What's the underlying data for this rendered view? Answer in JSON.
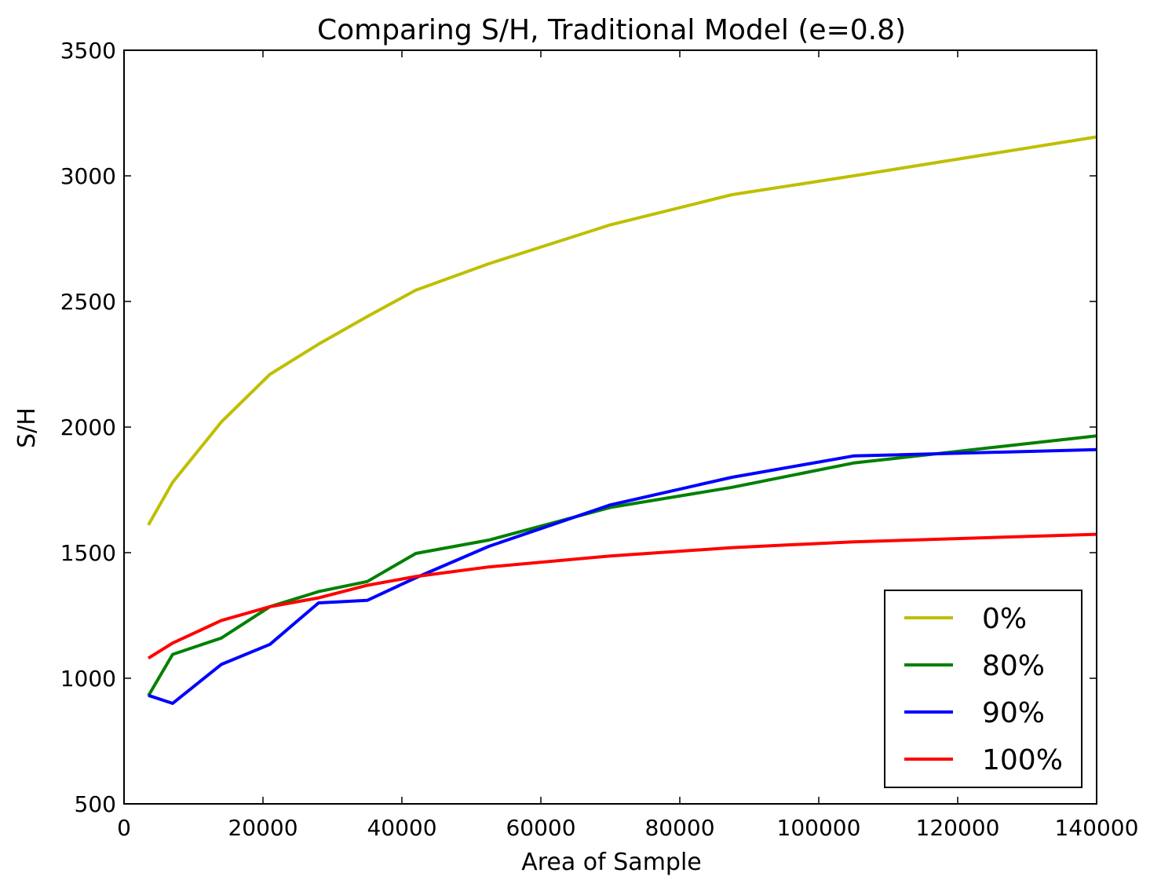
{
  "chart_data": {
    "type": "line",
    "title": "Comparing S/H, Traditional Model (e=0.8)",
    "xlabel": "Area of Sample",
    "ylabel": "S/H",
    "xlim": [
      0,
      140000
    ],
    "ylim": [
      500,
      3500
    ],
    "xticks": [
      0,
      20000,
      40000,
      60000,
      80000,
      100000,
      120000,
      140000
    ],
    "xtick_labels": [
      "0",
      "20000",
      "40000",
      "60000",
      "80000",
      "100000",
      "120000",
      "140000"
    ],
    "yticks": [
      500,
      1000,
      1500,
      2000,
      2500,
      3000,
      3500
    ],
    "ytick_labels": [
      "500",
      "1000",
      "1500",
      "2000",
      "2500",
      "3000",
      "3500"
    ],
    "grid": false,
    "legend_position": "lower-right",
    "x": [
      3500,
      7000,
      14000,
      21000,
      28000,
      35000,
      42000,
      52500,
      70000,
      87500,
      105000,
      140000
    ],
    "series": [
      {
        "name": "0%",
        "color": "#bfbf00",
        "values": [
          1610,
          1780,
          2020,
          2210,
          2330,
          2440,
          2545,
          2650,
          2805,
          2925,
          3000,
          3155
        ]
      },
      {
        "name": "80%",
        "color": "#008000",
        "values": [
          930,
          1095,
          1160,
          1285,
          1345,
          1385,
          1497,
          1550,
          1680,
          1760,
          1857,
          1965
        ]
      },
      {
        "name": "90%",
        "color": "#0000ff",
        "values": [
          932,
          900,
          1055,
          1135,
          1300,
          1310,
          1400,
          1525,
          1690,
          1800,
          1885,
          1910
        ]
      },
      {
        "name": "100%",
        "color": "#ff0000",
        "values": [
          1080,
          1140,
          1230,
          1285,
          1320,
          1370,
          1405,
          1443,
          1487,
          1520,
          1543,
          1573
        ]
      }
    ]
  }
}
